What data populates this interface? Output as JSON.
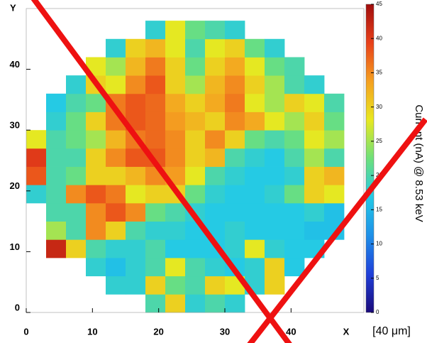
{
  "chart_data": {
    "type": "heatmap",
    "x_label": "X",
    "x_unit": "[40 μm]",
    "y_label": "Y",
    "z_label": "Current (nA) @ 8.53 keV",
    "xlim": [
      0,
      51
    ],
    "ylim": [
      0,
      50
    ],
    "xticks": [
      0,
      10,
      20,
      30,
      40
    ],
    "yticks": [
      0,
      10,
      20,
      30,
      40
    ],
    "xbins": [
      0,
      3,
      6,
      9,
      12,
      15,
      18,
      21,
      24,
      27,
      30,
      33,
      36,
      39,
      42,
      45,
      48,
      51
    ],
    "ybins": [
      0,
      3,
      6,
      9,
      12,
      15,
      18,
      21,
      24,
      27,
      30,
      33,
      36,
      39,
      42,
      45,
      48
    ],
    "zlim": [
      0,
      45
    ],
    "zticks": [
      0,
      5,
      10,
      15,
      20,
      25,
      30,
      35,
      40,
      45
    ],
    "colormap": [
      "#1a0a7a",
      "#1f3fd9",
      "#1e90e8",
      "#23c9e6",
      "#6ee07a",
      "#e8e820",
      "#f5a020",
      "#e8401a",
      "#a00d0d"
    ],
    "z": [
      [
        null,
        null,
        null,
        null,
        null,
        null,
        20,
        30,
        18,
        20,
        18,
        null,
        null,
        null,
        null,
        null,
        null
      ],
      [
        null,
        null,
        null,
        null,
        18,
        18,
        30,
        22,
        20,
        30,
        28,
        18,
        30,
        null,
        null,
        null,
        null
      ],
      [
        null,
        null,
        null,
        18,
        16,
        18,
        20,
        28,
        20,
        18,
        17,
        18,
        30,
        17,
        null,
        null,
        null
      ],
      [
        null,
        42,
        30,
        20,
        18,
        18,
        20,
        17,
        17,
        17,
        18,
        28,
        18,
        17,
        17,
        null,
        null
      ],
      [
        null,
        25,
        20,
        35,
        30,
        20,
        18,
        18,
        17,
        17,
        18,
        17,
        17,
        17,
        16,
        16,
        null
      ],
      [
        null,
        20,
        20,
        35,
        38,
        35,
        22,
        20,
        18,
        17,
        17,
        17,
        17,
        17,
        18,
        16,
        null
      ],
      [
        18,
        20,
        35,
        38,
        36,
        28,
        30,
        30,
        22,
        18,
        17,
        17,
        18,
        22,
        30,
        28,
        null
      ],
      [
        38,
        20,
        22,
        30,
        30,
        32,
        35,
        34,
        28,
        20,
        18,
        17,
        17,
        18,
        30,
        32,
        null
      ],
      [
        40,
        20,
        20,
        30,
        35,
        38,
        38,
        35,
        30,
        32,
        20,
        18,
        17,
        20,
        25,
        20,
        null
      ],
      [
        28,
        20,
        22,
        25,
        32,
        36,
        37,
        35,
        30,
        35,
        30,
        22,
        20,
        22,
        28,
        25,
        null
      ],
      [
        null,
        18,
        22,
        30,
        36,
        38,
        37,
        34,
        32,
        30,
        35,
        33,
        28,
        25,
        30,
        22,
        null
      ],
      [
        null,
        17,
        20,
        22,
        36,
        38,
        37,
        33,
        30,
        33,
        36,
        28,
        25,
        30,
        28,
        20,
        null
      ],
      [
        null,
        null,
        18,
        30,
        28,
        35,
        38,
        30,
        25,
        32,
        35,
        30,
        25,
        20,
        18,
        null,
        null
      ],
      [
        null,
        null,
        null,
        28,
        25,
        32,
        36,
        30,
        22,
        30,
        33,
        28,
        22,
        20,
        null,
        null,
        null
      ],
      [
        null,
        null,
        null,
        null,
        18,
        30,
        32,
        28,
        20,
        28,
        30,
        22,
        18,
        null,
        null,
        null,
        null
      ],
      [
        null,
        null,
        null,
        null,
        null,
        null,
        18,
        28,
        22,
        20,
        18,
        null,
        null,
        null,
        null,
        null,
        null
      ]
    ]
  }
}
